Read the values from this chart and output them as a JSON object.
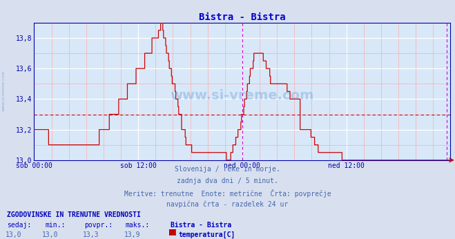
{
  "title": "Bistra - Bistra",
  "title_color": "#0000cc",
  "bg_color": "#d8e0f0",
  "plot_bg_color": "#d8e8f8",
  "grid_color_major": "#ffffff",
  "grid_color_minor": "#ffaaaa",
  "line_color": "#cc0000",
  "avg_line_color": "#cc0000",
  "vline_color": "#cc00cc",
  "axis_label_color": "#0000aa",
  "text_color": "#4466aa",
  "ylim": [
    13.0,
    13.9
  ],
  "yticks": [
    13.0,
    13.2,
    13.4,
    13.6,
    13.8
  ],
  "ytick_labels": [
    "13,0",
    "13,2",
    "13,4",
    "13,6",
    "13,8"
  ],
  "xtick_labels": [
    "sob 00:00",
    "sob 12:00",
    "ned 00:00",
    "ned 12:00"
  ],
  "xtick_positions": [
    0,
    144,
    288,
    432
  ],
  "total_points": 576,
  "avg_value": 13.3,
  "vline_positions": [
    288,
    571
  ],
  "subtitle_lines": [
    "Slovenija / reke in morje.",
    "zadnja dva dni / 5 minut.",
    "Meritve: trenutne  Enote: metrične  Črta: povprečje",
    "navpična črta - razdelek 24 ur"
  ],
  "footer_bold": "ZGODOVINSKE IN TRENUTNE VREDNOSTI",
  "footer_cols": [
    "sedaj:",
    "min.:",
    "povpr.:",
    "maks.:",
    "Bistra - Bistra"
  ],
  "footer_vals": [
    "13,0",
    "13,0",
    "13,3",
    "13,9",
    "temperatura[C]"
  ],
  "watermark": "www.si-vreme.com",
  "watermark_color": "#4488cc",
  "sidebar_text": "www.si-vreme.com",
  "data_y": [
    13.2,
    13.2,
    13.2,
    13.2,
    13.2,
    13.2,
    13.2,
    13.2,
    13.2,
    13.2,
    13.2,
    13.2,
    13.2,
    13.2,
    13.2,
    13.2,
    13.2,
    13.2,
    13.2,
    13.2,
    13.1,
    13.1,
    13.1,
    13.1,
    13.1,
    13.1,
    13.1,
    13.1,
    13.1,
    13.1,
    13.1,
    13.1,
    13.1,
    13.1,
    13.1,
    13.1,
    13.1,
    13.1,
    13.1,
    13.1,
    13.1,
    13.1,
    13.1,
    13.1,
    13.1,
    13.1,
    13.1,
    13.1,
    13.1,
    13.1,
    13.1,
    13.1,
    13.1,
    13.1,
    13.1,
    13.1,
    13.1,
    13.1,
    13.1,
    13.1,
    13.1,
    13.1,
    13.1,
    13.1,
    13.1,
    13.1,
    13.1,
    13.1,
    13.1,
    13.1,
    13.1,
    13.1,
    13.1,
    13.1,
    13.1,
    13.1,
    13.1,
    13.1,
    13.1,
    13.1,
    13.1,
    13.1,
    13.1,
    13.1,
    13.1,
    13.1,
    13.1,
    13.1,
    13.1,
    13.1,
    13.2,
    13.2,
    13.2,
    13.2,
    13.2,
    13.2,
    13.2,
    13.2,
    13.2,
    13.2,
    13.2,
    13.2,
    13.2,
    13.2,
    13.3,
    13.3,
    13.3,
    13.3,
    13.3,
    13.3,
    13.3,
    13.3,
    13.3,
    13.3,
    13.3,
    13.3,
    13.3,
    13.4,
    13.4,
    13.4,
    13.4,
    13.4,
    13.4,
    13.4,
    13.4,
    13.4,
    13.4,
    13.4,
    13.4,
    13.5,
    13.5,
    13.5,
    13.5,
    13.5,
    13.5,
    13.5,
    13.5,
    13.5,
    13.5,
    13.5,
    13.5,
    13.6,
    13.6,
    13.6,
    13.6,
    13.6,
    13.6,
    13.6,
    13.6,
    13.6,
    13.6,
    13.6,
    13.6,
    13.7,
    13.7,
    13.7,
    13.7,
    13.7,
    13.7,
    13.7,
    13.7,
    13.7,
    13.7,
    13.8,
    13.8,
    13.8,
    13.8,
    13.8,
    13.8,
    13.8,
    13.8,
    13.8,
    13.85,
    13.85,
    13.85,
    13.9,
    13.9,
    13.9,
    13.85,
    13.8,
    13.8,
    13.8,
    13.75,
    13.7,
    13.7,
    13.7,
    13.65,
    13.6,
    13.6,
    13.6,
    13.55,
    13.5,
    13.5,
    13.5,
    13.5,
    13.45,
    13.4,
    13.4,
    13.4,
    13.35,
    13.3,
    13.3,
    13.3,
    13.3,
    13.2,
    13.2,
    13.2,
    13.2,
    13.2,
    13.15,
    13.1,
    13.1,
    13.1,
    13.1,
    13.1,
    13.1,
    13.1,
    13.1,
    13.05,
    13.05,
    13.05,
    13.05,
    13.05,
    13.05,
    13.05,
    13.05,
    13.05,
    13.05,
    13.05,
    13.05,
    13.05,
    13.05,
    13.05,
    13.05,
    13.05,
    13.05,
    13.05,
    13.05,
    13.05,
    13.05,
    13.05,
    13.05,
    13.05,
    13.05,
    13.05,
    13.05,
    13.05,
    13.05,
    13.05,
    13.05,
    13.05,
    13.05,
    13.05,
    13.05,
    13.05,
    13.05,
    13.05,
    13.05,
    13.05,
    13.05,
    13.05,
    13.05,
    13.05,
    13.05,
    13.05,
    13.05,
    13.0,
    13.0,
    13.0,
    13.0,
    13.0,
    13.0,
    13.05,
    13.05,
    13.05,
    13.1,
    13.1,
    13.1,
    13.1,
    13.15,
    13.15,
    13.15,
    13.2,
    13.2,
    13.2,
    13.2,
    13.25,
    13.3,
    13.3,
    13.3,
    13.35,
    13.4,
    13.4,
    13.4,
    13.45,
    13.5,
    13.5,
    13.5,
    13.55,
    13.6,
    13.6,
    13.6,
    13.6,
    13.65,
    13.7,
    13.7,
    13.7,
    13.7,
    13.7,
    13.7,
    13.7,
    13.7,
    13.7,
    13.7,
    13.7,
    13.7,
    13.7,
    13.65,
    13.65,
    13.65,
    13.65,
    13.6,
    13.6,
    13.6,
    13.6,
    13.6,
    13.55,
    13.5,
    13.5,
    13.5,
    13.5,
    13.5,
    13.5,
    13.5,
    13.5,
    13.5,
    13.5,
    13.5,
    13.5,
    13.5,
    13.5,
    13.5,
    13.5,
    13.5,
    13.5,
    13.5,
    13.5,
    13.5,
    13.5,
    13.5,
    13.45,
    13.45,
    13.45,
    13.45,
    13.4,
    13.4,
    13.4,
    13.4,
    13.4,
    13.4,
    13.4,
    13.4,
    13.4,
    13.4,
    13.4,
    13.4,
    13.4,
    13.4,
    13.2,
    13.2,
    13.2,
    13.2,
    13.2,
    13.2,
    13.2,
    13.2,
    13.2,
    13.2,
    13.2,
    13.2,
    13.2,
    13.2,
    13.2,
    13.15,
    13.15,
    13.15,
    13.15,
    13.15,
    13.1,
    13.1,
    13.1,
    13.1,
    13.1,
    13.05,
    13.05,
    13.05,
    13.05,
    13.05,
    13.05,
    13.05,
    13.05,
    13.05,
    13.05,
    13.05,
    13.05,
    13.05,
    13.05,
    13.05,
    13.05,
    13.05,
    13.05,
    13.05,
    13.05,
    13.05,
    13.05,
    13.05,
    13.05,
    13.05,
    13.05,
    13.05,
    13.05,
    13.05,
    13.05,
    13.05,
    13.05,
    13.05,
    13.0,
    13.0,
    13.0,
    13.0,
    13.0,
    13.0,
    13.0,
    13.0,
    13.0,
    13.0,
    13.0,
    13.0,
    13.0,
    13.0,
    13.0,
    13.0,
    13.0,
    13.0,
    13.0,
    13.0,
    13.0,
    13.0,
    13.0,
    13.0,
    13.0,
    13.0,
    13.0,
    13.0,
    13.0,
    13.0,
    13.0,
    13.0,
    13.0,
    13.0,
    13.0,
    13.0,
    13.0,
    13.0,
    13.0,
    13.0,
    13.0,
    13.0,
    13.0,
    13.0,
    13.0,
    13.0,
    13.0,
    13.0,
    13.0,
    13.0,
    13.0,
    13.0,
    13.0,
    13.0,
    13.0,
    13.0,
    13.0,
    13.0,
    13.0,
    13.0,
    13.0,
    13.0,
    13.0,
    13.0,
    13.0,
    13.0,
    13.0,
    13.0,
    13.0,
    13.0,
    13.0,
    13.0,
    13.0,
    13.0,
    13.0,
    13.0,
    13.0,
    13.0,
    13.0,
    13.0,
    13.0,
    13.0,
    13.0,
    13.0,
    13.0,
    13.0,
    13.0,
    13.0,
    13.0,
    13.0,
    13.0,
    13.0,
    13.0,
    13.0,
    13.0,
    13.0,
    13.0,
    13.0,
    13.0,
    13.0,
    13.0,
    13.0,
    13.0,
    13.0,
    13.0,
    13.0,
    13.0,
    13.0,
    13.0,
    13.0,
    13.0,
    13.0,
    13.0,
    13.0,
    13.0,
    13.0,
    13.0,
    13.0,
    13.0,
    13.0,
    13.0,
    13.0,
    13.0,
    13.0,
    13.0,
    13.0,
    13.0,
    13.0,
    13.0,
    13.0,
    13.0,
    13.0,
    13.0,
    13.0,
    13.0,
    13.0,
    13.0,
    13.0,
    13.0,
    13.0,
    13.0,
    13.0,
    13.0,
    13.0,
    13.0,
    13.0,
    13.0,
    13.0,
    13.0,
    13.0
  ]
}
